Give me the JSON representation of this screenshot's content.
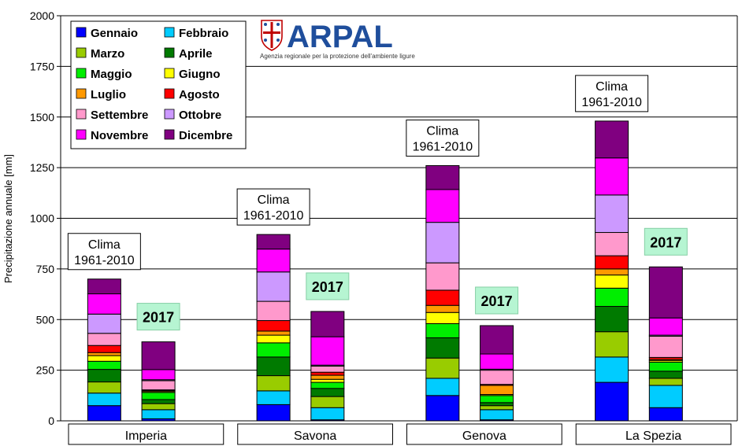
{
  "chart_data": {
    "type": "bar",
    "stacked": true,
    "title": "",
    "ylabel": "Precipitazione annuale [mm]",
    "ylim": [
      0,
      2000
    ],
    "yticks": [
      0,
      250,
      500,
      750,
      1000,
      1250,
      1500,
      1750,
      2000
    ],
    "grid": true,
    "legend_position": "top-left",
    "groups": [
      "Imperia",
      "Savona",
      "Genova",
      "La Spezia"
    ],
    "bar_labels": {
      "clima_line1": "Clima",
      "clima_line2": "1961-2010",
      "year": "2017"
    },
    "series": [
      {
        "name": "Gennaio",
        "color": "#0000ff"
      },
      {
        "name": "Febbraio",
        "color": "#00ccff"
      },
      {
        "name": "Marzo",
        "color": "#99cc00"
      },
      {
        "name": "Aprile",
        "color": "#007a00"
      },
      {
        "name": "Maggio",
        "color": "#00ee00"
      },
      {
        "name": "Giugno",
        "color": "#ffff00"
      },
      {
        "name": "Luglio",
        "color": "#ff9900"
      },
      {
        "name": "Agosto",
        "color": "#ff0000"
      },
      {
        "name": "Settembre",
        "color": "#ff99cc"
      },
      {
        "name": "Ottobre",
        "color": "#cc99ff"
      },
      {
        "name": "Novembre",
        "color": "#ff00ff"
      },
      {
        "name": "Dicembre",
        "color": "#800080"
      }
    ],
    "bars": [
      {
        "group": "Imperia",
        "kind": "clima",
        "values": [
          75,
          62,
          55,
          62,
          40,
          28,
          15,
          35,
          60,
          95,
          100,
          73
        ]
      },
      {
        "group": "Imperia",
        "kind": "2017",
        "values": [
          10,
          45,
          30,
          20,
          35,
          5,
          5,
          3,
          45,
          5,
          50,
          137
        ]
      },
      {
        "group": "Savona",
        "kind": "clima",
        "values": [
          80,
          68,
          75,
          92,
          70,
          38,
          20,
          52,
          95,
          145,
          113,
          72
        ]
      },
      {
        "group": "Savona",
        "kind": "2017",
        "values": [
          5,
          60,
          55,
          40,
          30,
          15,
          20,
          15,
          30,
          5,
          140,
          125
        ]
      },
      {
        "group": "Genova",
        "kind": "clima",
        "values": [
          125,
          85,
          100,
          100,
          70,
          55,
          35,
          75,
          135,
          200,
          162,
          118
        ]
      },
      {
        "group": "Genova",
        "kind": "2017",
        "values": [
          5,
          50,
          20,
          15,
          35,
          5,
          45,
          5,
          70,
          5,
          75,
          140
        ]
      },
      {
        "group": "La Spezia",
        "kind": "clima",
        "values": [
          190,
          125,
          125,
          125,
          90,
          65,
          30,
          65,
          115,
          185,
          183,
          182
        ]
      },
      {
        "group": "La Spezia",
        "kind": "2017",
        "values": [
          65,
          110,
          35,
          35,
          45,
          8,
          5,
          10,
          105,
          5,
          85,
          252
        ]
      }
    ]
  },
  "logo": {
    "name": "ARPAL",
    "subtitle": "Agenzia regionale per la protezione dell'ambiente ligure"
  }
}
